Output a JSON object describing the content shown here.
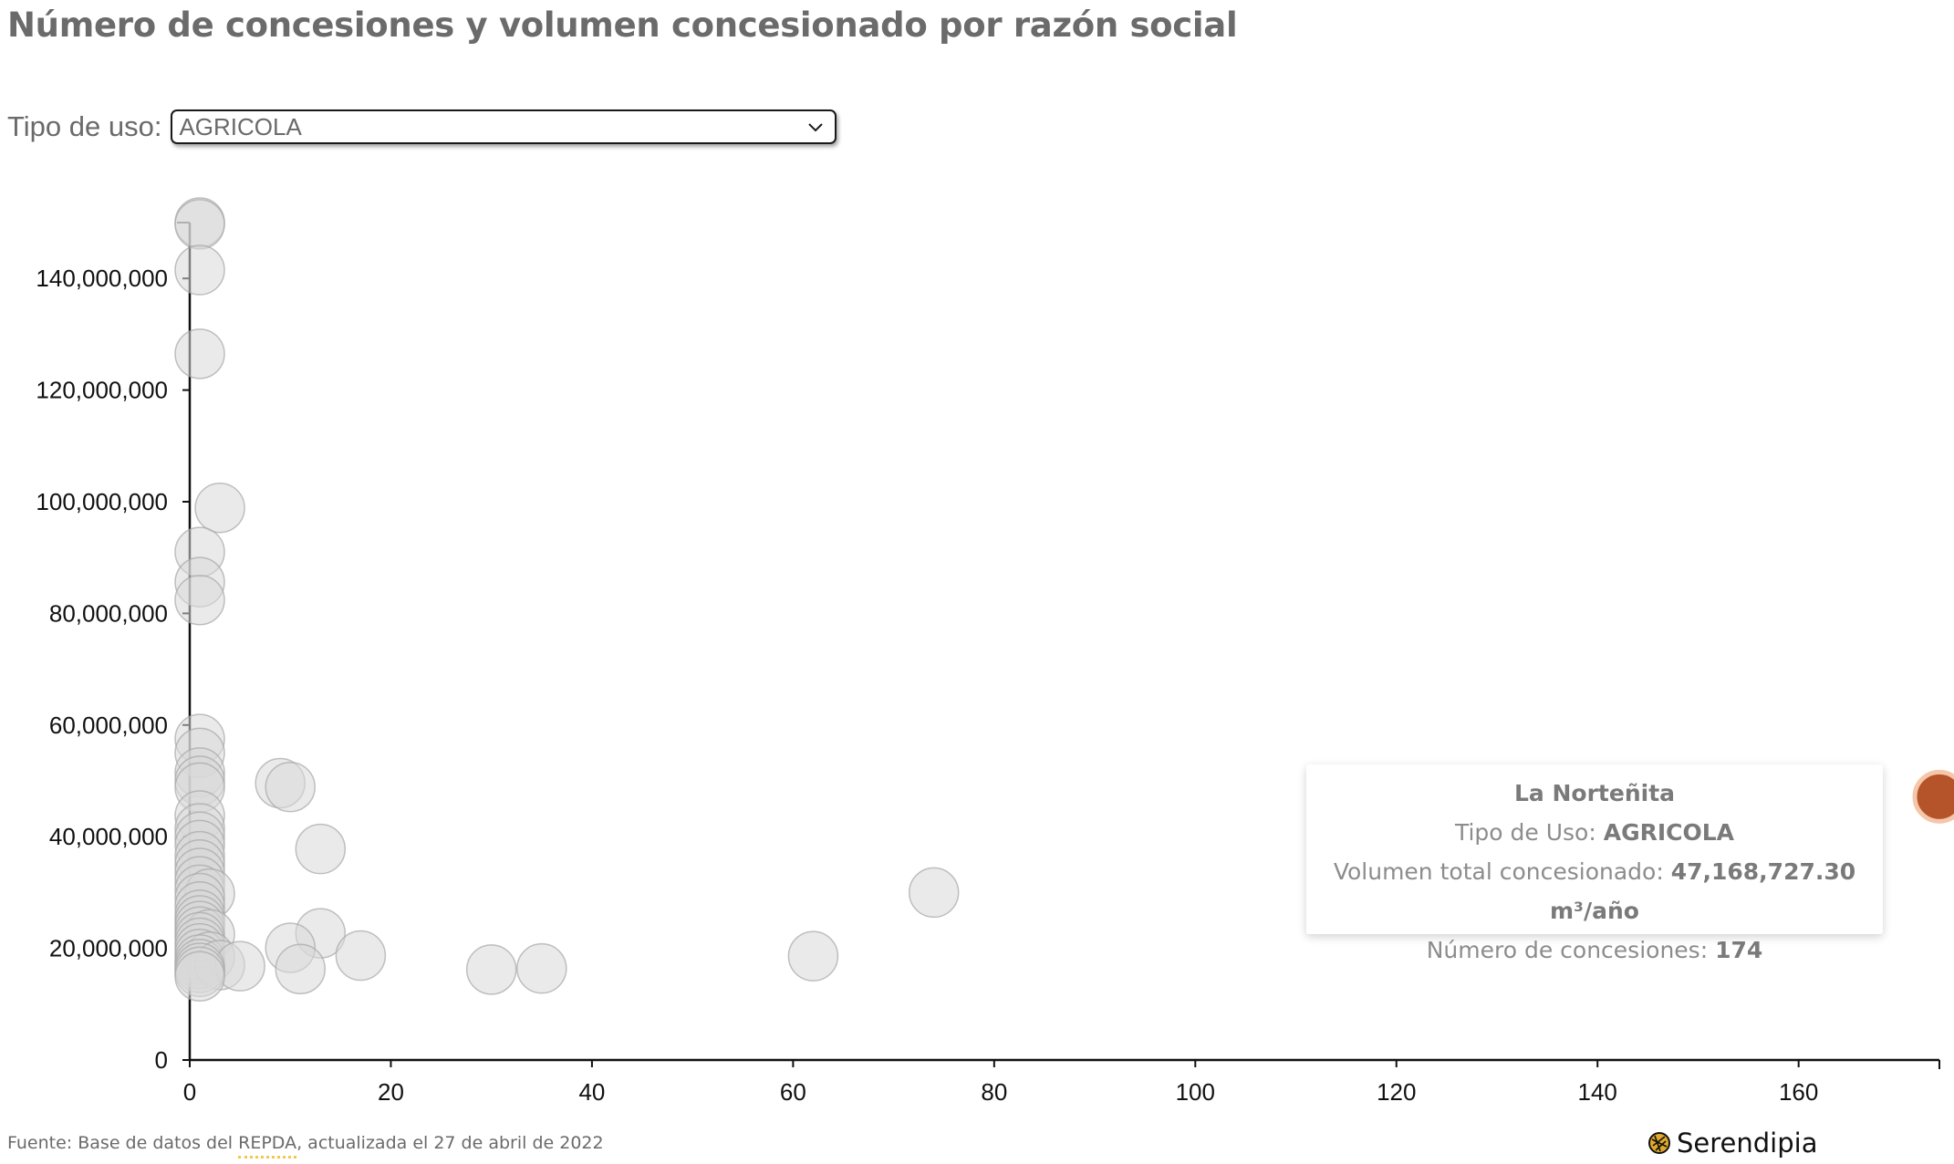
{
  "title": "Número de concesiones y volumen concesionado por razón social",
  "filter": {
    "label": "Tipo de uso:",
    "selected": "AGRICOLA"
  },
  "chart_data": {
    "type": "scatter",
    "title": "Número de concesiones y volumen concesionado por razón social",
    "xlabel": "",
    "ylabel": "",
    "xlim": [
      0,
      174
    ],
    "ylim": [
      0,
      150000000
    ],
    "x_ticks": [
      0,
      20,
      40,
      60,
      80,
      100,
      120,
      140,
      160
    ],
    "y_ticks": [
      0,
      20000000,
      40000000,
      60000000,
      80000000,
      100000000,
      120000000,
      140000000
    ],
    "y_tick_labels": [
      "0",
      "20,000,000",
      "40,000,000",
      "60,000,000",
      "80,000,000",
      "100,000,000",
      "120,000,000",
      "140,000,000"
    ],
    "grid": false,
    "colors": {
      "point": "#d9d9d9",
      "point_stroke": "#a6a6a6",
      "highlight": "#b5542b",
      "highlight_stroke": "#f5c7a9"
    },
    "points": [
      {
        "x": 1,
        "y": 150000000
      },
      {
        "x": 1,
        "y": 149700000
      },
      {
        "x": 1,
        "y": 141500000
      },
      {
        "x": 1,
        "y": 126500000
      },
      {
        "x": 3,
        "y": 98900000
      },
      {
        "x": 1,
        "y": 91000000
      },
      {
        "x": 1,
        "y": 85600000
      },
      {
        "x": 1,
        "y": 82400000
      },
      {
        "x": 1,
        "y": 57500000
      },
      {
        "x": 1,
        "y": 55000000
      },
      {
        "x": 1,
        "y": 51500000
      },
      {
        "x": 1,
        "y": 50000000
      },
      {
        "x": 1,
        "y": 48800000
      },
      {
        "x": 9,
        "y": 49600000
      },
      {
        "x": 10,
        "y": 48900000
      },
      {
        "x": 1,
        "y": 43800000
      },
      {
        "x": 1,
        "y": 41500000
      },
      {
        "x": 1,
        "y": 40000000
      },
      {
        "x": 1,
        "y": 38500000
      },
      {
        "x": 13,
        "y": 37800000
      },
      {
        "x": 1,
        "y": 36500000
      },
      {
        "x": 1,
        "y": 35000000
      },
      {
        "x": 1,
        "y": 33500000
      },
      {
        "x": 1,
        "y": 32000000
      },
      {
        "x": 1,
        "y": 30500000
      },
      {
        "x": 2,
        "y": 29800000
      },
      {
        "x": 74,
        "y": 30000000
      },
      {
        "x": 1,
        "y": 29000000
      },
      {
        "x": 1,
        "y": 27500000
      },
      {
        "x": 1,
        "y": 26000000
      },
      {
        "x": 1,
        "y": 25000000
      },
      {
        "x": 1,
        "y": 24000000
      },
      {
        "x": 1,
        "y": 23000000
      },
      {
        "x": 2,
        "y": 22500000
      },
      {
        "x": 13,
        "y": 22700000
      },
      {
        "x": 1,
        "y": 22000000
      },
      {
        "x": 1,
        "y": 21000000
      },
      {
        "x": 1,
        "y": 20000000
      },
      {
        "x": 10,
        "y": 20100000
      },
      {
        "x": 1,
        "y": 19000000
      },
      {
        "x": 2,
        "y": 18500000
      },
      {
        "x": 17,
        "y": 18700000
      },
      {
        "x": 62,
        "y": 18600000
      },
      {
        "x": 1,
        "y": 18000000
      },
      {
        "x": 1,
        "y": 17200000
      },
      {
        "x": 3,
        "y": 17000000
      },
      {
        "x": 5,
        "y": 16800000
      },
      {
        "x": 1,
        "y": 16500000
      },
      {
        "x": 11,
        "y": 16300000
      },
      {
        "x": 30,
        "y": 16200000
      },
      {
        "x": 35,
        "y": 16400000
      },
      {
        "x": 1,
        "y": 15800000
      },
      {
        "x": 1,
        "y": 15000000
      }
    ],
    "highlight": {
      "x": 174,
      "y": 47168727.3
    }
  },
  "tooltip": {
    "name": "La Norteñita",
    "use_label": "Tipo de Uso:",
    "use_value": "AGRICOLA",
    "volume_label": "Volumen total concesionado:",
    "volume_value": "47,168,727.30 m³/año",
    "count_label": "Número de concesiones:",
    "count_value": "174"
  },
  "footer": {
    "source_prefix": "Fuente: Base de datos del ",
    "source_link": "REPDA",
    "source_suffix": ", actualizada el 27 de abril de 2022",
    "brand": "Serendipia"
  },
  "icons": {
    "select": "chevron-down-icon",
    "brand": "serendipia-logo-icon"
  }
}
